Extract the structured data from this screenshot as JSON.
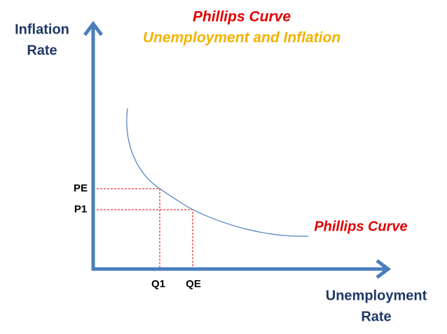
{
  "title": "Phillips Curve",
  "subtitle": "Unemployment and Inflation",
  "y_axis_label": [
    "Inflation",
    "Rate"
  ],
  "x_axis_label": [
    "Unemployment",
    "Rate"
  ],
  "curve_label": "Phillips Curve",
  "y_ticks": [
    "PE",
    "P1"
  ],
  "x_ticks": [
    "Q1",
    "QE"
  ]
}
